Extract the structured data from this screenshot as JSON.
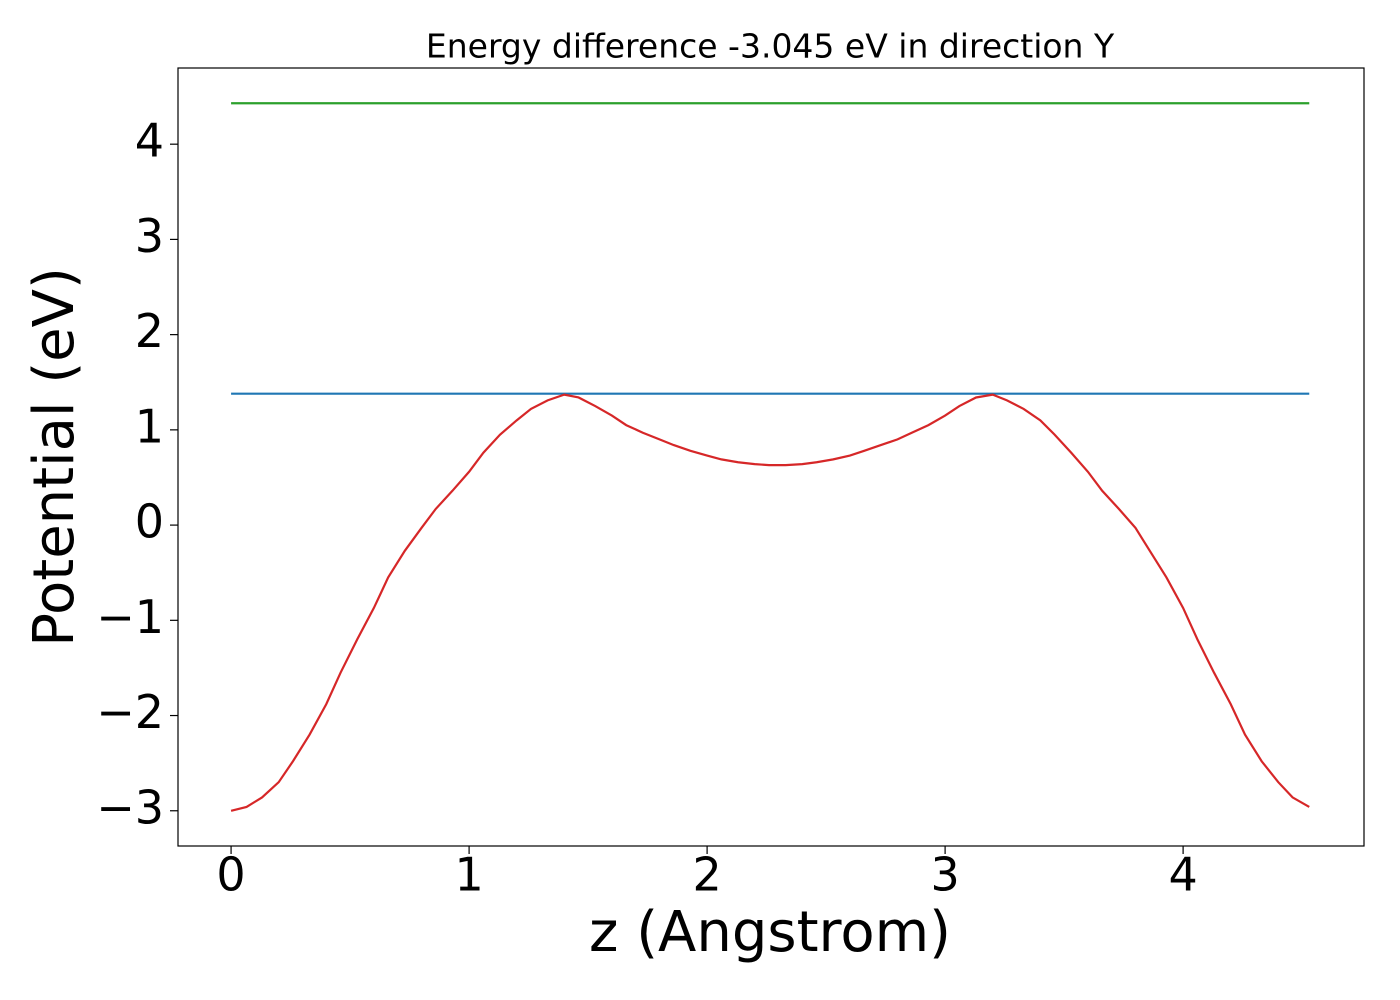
{
  "chart_data": {
    "type": "line",
    "title": "Energy difference -3.045 eV in direction Y",
    "xlabel": "z (Angstrom)",
    "ylabel": "Potential (eV)",
    "xlim": [
      -0.223,
      4.76
    ],
    "ylim": [
      -3.37,
      4.8
    ],
    "xticks": [
      0,
      1,
      2,
      3,
      4
    ],
    "yticks": [
      {
        "value": -3,
        "label": "−3"
      },
      {
        "value": -2,
        "label": "−2"
      },
      {
        "value": -1,
        "label": "−1"
      },
      0,
      1,
      2,
      3,
      4
    ],
    "grid": false,
    "series": [
      {
        "color": "#2ca02c",
        "x": [
          0,
          4.53
        ],
        "values": [
          4.43,
          4.43
        ]
      },
      {
        "color": "#1f77b4",
        "x": [
          0,
          4.53
        ],
        "values": [
          1.38,
          1.38
        ]
      },
      {
        "color": "#d62728",
        "x": [
          0,
          0.065,
          0.13,
          0.2,
          0.26,
          0.33,
          0.4,
          0.46,
          0.53,
          0.6,
          0.66,
          0.73,
          0.8,
          0.86,
          0.93,
          1.0,
          1.06,
          1.13,
          1.2,
          1.26,
          1.33,
          1.4,
          1.46,
          1.53,
          1.6,
          1.66,
          1.73,
          1.8,
          1.86,
          1.93,
          2.0,
          2.06,
          2.13,
          2.2,
          2.26,
          2.33,
          2.4,
          2.46,
          2.53,
          2.6,
          2.66,
          2.73,
          2.8,
          2.86,
          2.93,
          3.0,
          3.06,
          3.13,
          3.2,
          3.26,
          3.33,
          3.4,
          3.46,
          3.53,
          3.6,
          3.66,
          3.73,
          3.8,
          3.86,
          3.93,
          4.0,
          4.06,
          4.13,
          4.2,
          4.26,
          4.33,
          4.4,
          4.46,
          4.53
        ],
        "values": [
          -3.0,
          -2.96,
          -2.86,
          -2.7,
          -2.48,
          -2.2,
          -1.88,
          -1.55,
          -1.2,
          -0.87,
          -0.55,
          -0.27,
          -0.03,
          0.17,
          0.36,
          0.56,
          0.76,
          0.95,
          1.1,
          1.22,
          1.31,
          1.37,
          1.34,
          1.25,
          1.15,
          1.05,
          0.97,
          0.9,
          0.84,
          0.78,
          0.73,
          0.69,
          0.66,
          0.64,
          0.63,
          0.63,
          0.64,
          0.66,
          0.69,
          0.73,
          0.78,
          0.84,
          0.9,
          0.97,
          1.05,
          1.15,
          1.25,
          1.34,
          1.37,
          1.31,
          1.22,
          1.1,
          0.95,
          0.76,
          0.56,
          0.36,
          0.17,
          -0.03,
          -0.27,
          -0.55,
          -0.87,
          -1.2,
          -1.55,
          -1.88,
          -2.2,
          -2.48,
          -2.7,
          -2.86,
          -2.96
        ]
      }
    ]
  }
}
